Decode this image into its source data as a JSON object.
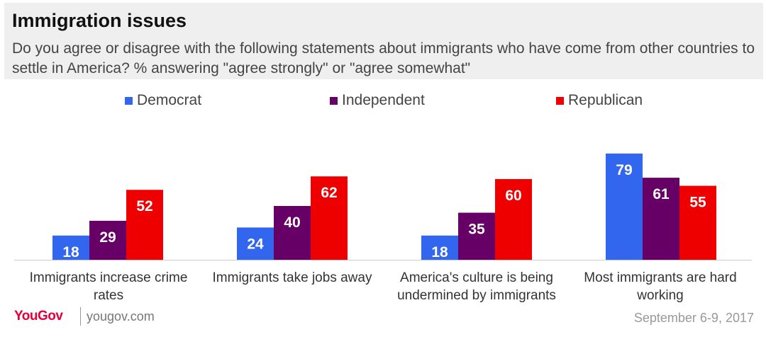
{
  "header": {
    "title": "Immigration issues",
    "subtitle": "Do you agree or disagree with the following statements about immigrants who have come from other countries to settle in America? % answering \"agree strongly\" or \"agree somewhat\""
  },
  "chart_data": {
    "type": "bar",
    "categories": [
      "Immigrants increase crime rates",
      "Immigrants take jobs away",
      "America's culture is being undermined by immigrants",
      "Most immigrants are hard working"
    ],
    "series": [
      {
        "name": "Democrat",
        "color": "#3366ee",
        "values": [
          18,
          24,
          18,
          79
        ]
      },
      {
        "name": "Independent",
        "color": "#660066",
        "values": [
          29,
          40,
          35,
          61
        ]
      },
      {
        "name": "Republican",
        "color": "#ee0000",
        "values": [
          52,
          62,
          60,
          55
        ]
      }
    ],
    "ylim": [
      0,
      100
    ],
    "grid": false,
    "legend_position": "top",
    "data_labels": true
  },
  "footer": {
    "brand": "YouGov",
    "url": "yougov.com",
    "date": "September 6-9, 2017"
  }
}
